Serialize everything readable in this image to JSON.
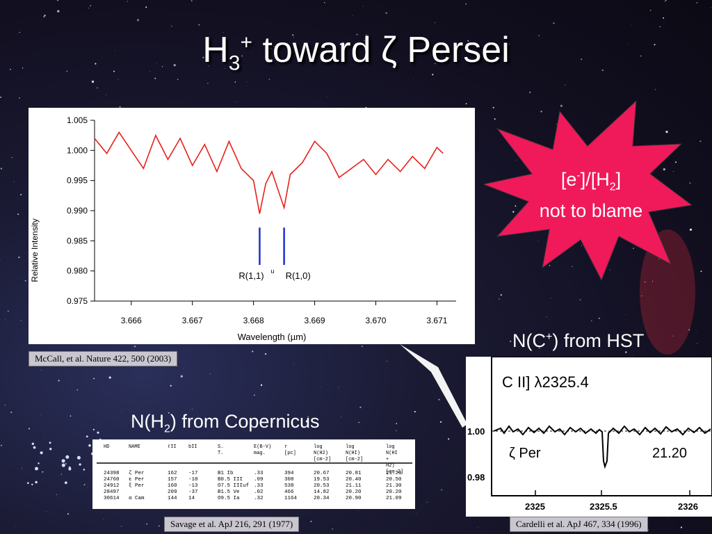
{
  "slide": {
    "title_main": "H",
    "title_sub": "3",
    "title_sup": "+",
    "title_rest": " toward ζ Persei"
  },
  "chart_data": {
    "type": "line",
    "xlabel": "Wavelength (µm)",
    "ylabel": "Relative Intensity",
    "xlim": [
      3.6654,
      3.6712
    ],
    "ylim": [
      0.975,
      1.005
    ],
    "xticks": [
      "3.666",
      "3.667",
      "3.668",
      "3.669",
      "3.670",
      "3.671"
    ],
    "yticks": [
      "1.005",
      "1.000",
      "0.995",
      "0.990",
      "0.985",
      "0.980",
      "0.975"
    ],
    "series_color": "#e8201c",
    "marker_color": "#1a2fcf",
    "markers": [
      {
        "x": 3.6681,
        "label": "R(1,1)",
        "sup": "u"
      },
      {
        "x": 3.6685,
        "label": "R(1,0)"
      }
    ],
    "series": [
      {
        "x": [
          3.6654,
          3.6656,
          3.6658,
          3.666,
          3.6662,
          3.6664,
          3.6666,
          3.6668,
          3.667,
          3.6672,
          3.6674,
          3.6676,
          3.6678,
          3.668,
          3.6681,
          3.6682,
          3.6683,
          3.6684,
          3.6685,
          3.6686,
          3.6688,
          3.669,
          3.6692,
          3.6694,
          3.6696,
          3.6698,
          3.67,
          3.6702,
          3.6704,
          3.6706,
          3.6708,
          3.671,
          3.6711
        ],
        "y": [
          1.002,
          0.9995,
          1.003,
          1.0,
          0.997,
          1.0025,
          0.9985,
          1.002,
          0.9975,
          1.001,
          0.9965,
          1.0015,
          0.997,
          0.995,
          0.9895,
          0.9945,
          0.9965,
          0.9935,
          0.9905,
          0.996,
          0.998,
          1.0015,
          0.9995,
          0.9955,
          0.997,
          0.9985,
          0.996,
          0.9985,
          0.9965,
          0.999,
          0.997,
          1.0005,
          0.9995
        ]
      }
    ]
  },
  "citations": {
    "mccall": "McCall, et al. Nature 422, 500 (2003)",
    "savage": "Savage et al. ApJ 216, 291 (1977)",
    "cardelli": "Cardelli et al. ApJ 467, 334 (1996)"
  },
  "starburst": {
    "line1_a": "[e",
    "line1_sup": "-",
    "line1_b": "]/[H",
    "line1_sub": "2",
    "line1_c": "]",
    "line2": "not to blame",
    "fill": "#f0195a"
  },
  "hst_label": {
    "a": "N(C",
    "sup": "+",
    "b": ") from HST"
  },
  "copernicus_label": {
    "a": "N(H",
    "sub": "2",
    "b": ") from Copernicus"
  },
  "cii_panel": {
    "heading": "C II] λ2325.4",
    "star": "ζ Per",
    "value": "21.20",
    "y_labels": [
      "1.00",
      "0.98"
    ],
    "x_labels": [
      "2325",
      "2325.5",
      "2326"
    ]
  },
  "table": {
    "headers": [
      "HD",
      "NAME",
      "ℓII",
      "bII",
      "S. T.",
      "E(B-V) mag.",
      "r [pc]",
      "log N(H2) [cm-2]",
      "log N(HI) [cm-2]",
      "log N(HI + H2) [cm-2]"
    ],
    "rows": [
      [
        "24398",
        "ζ Per",
        "162",
        "-17",
        "B1 Ib",
        ".33",
        "394",
        "20.67",
        "20.81",
        "21.20"
      ],
      [
        "24760",
        "ε Per",
        "157",
        "-10",
        "B0.5 III",
        ".09",
        "308",
        "19.53",
        "20.40",
        "20.50"
      ],
      [
        "24912",
        "ξ Per",
        "160",
        "-13",
        "O7.5 IIIuf",
        ".33",
        "538",
        "20.53",
        "21.11",
        "21.30"
      ],
      [
        "28497",
        "",
        "209",
        "-37",
        "B1.5 Ve",
        ".02",
        "466",
        "14.82",
        "20.20",
        "20.20"
      ],
      [
        "30614",
        "α Cam",
        "144",
        "14",
        "O9.5 Ia",
        ".32",
        "1164",
        "20.34",
        "20.90",
        "21.09"
      ]
    ]
  }
}
